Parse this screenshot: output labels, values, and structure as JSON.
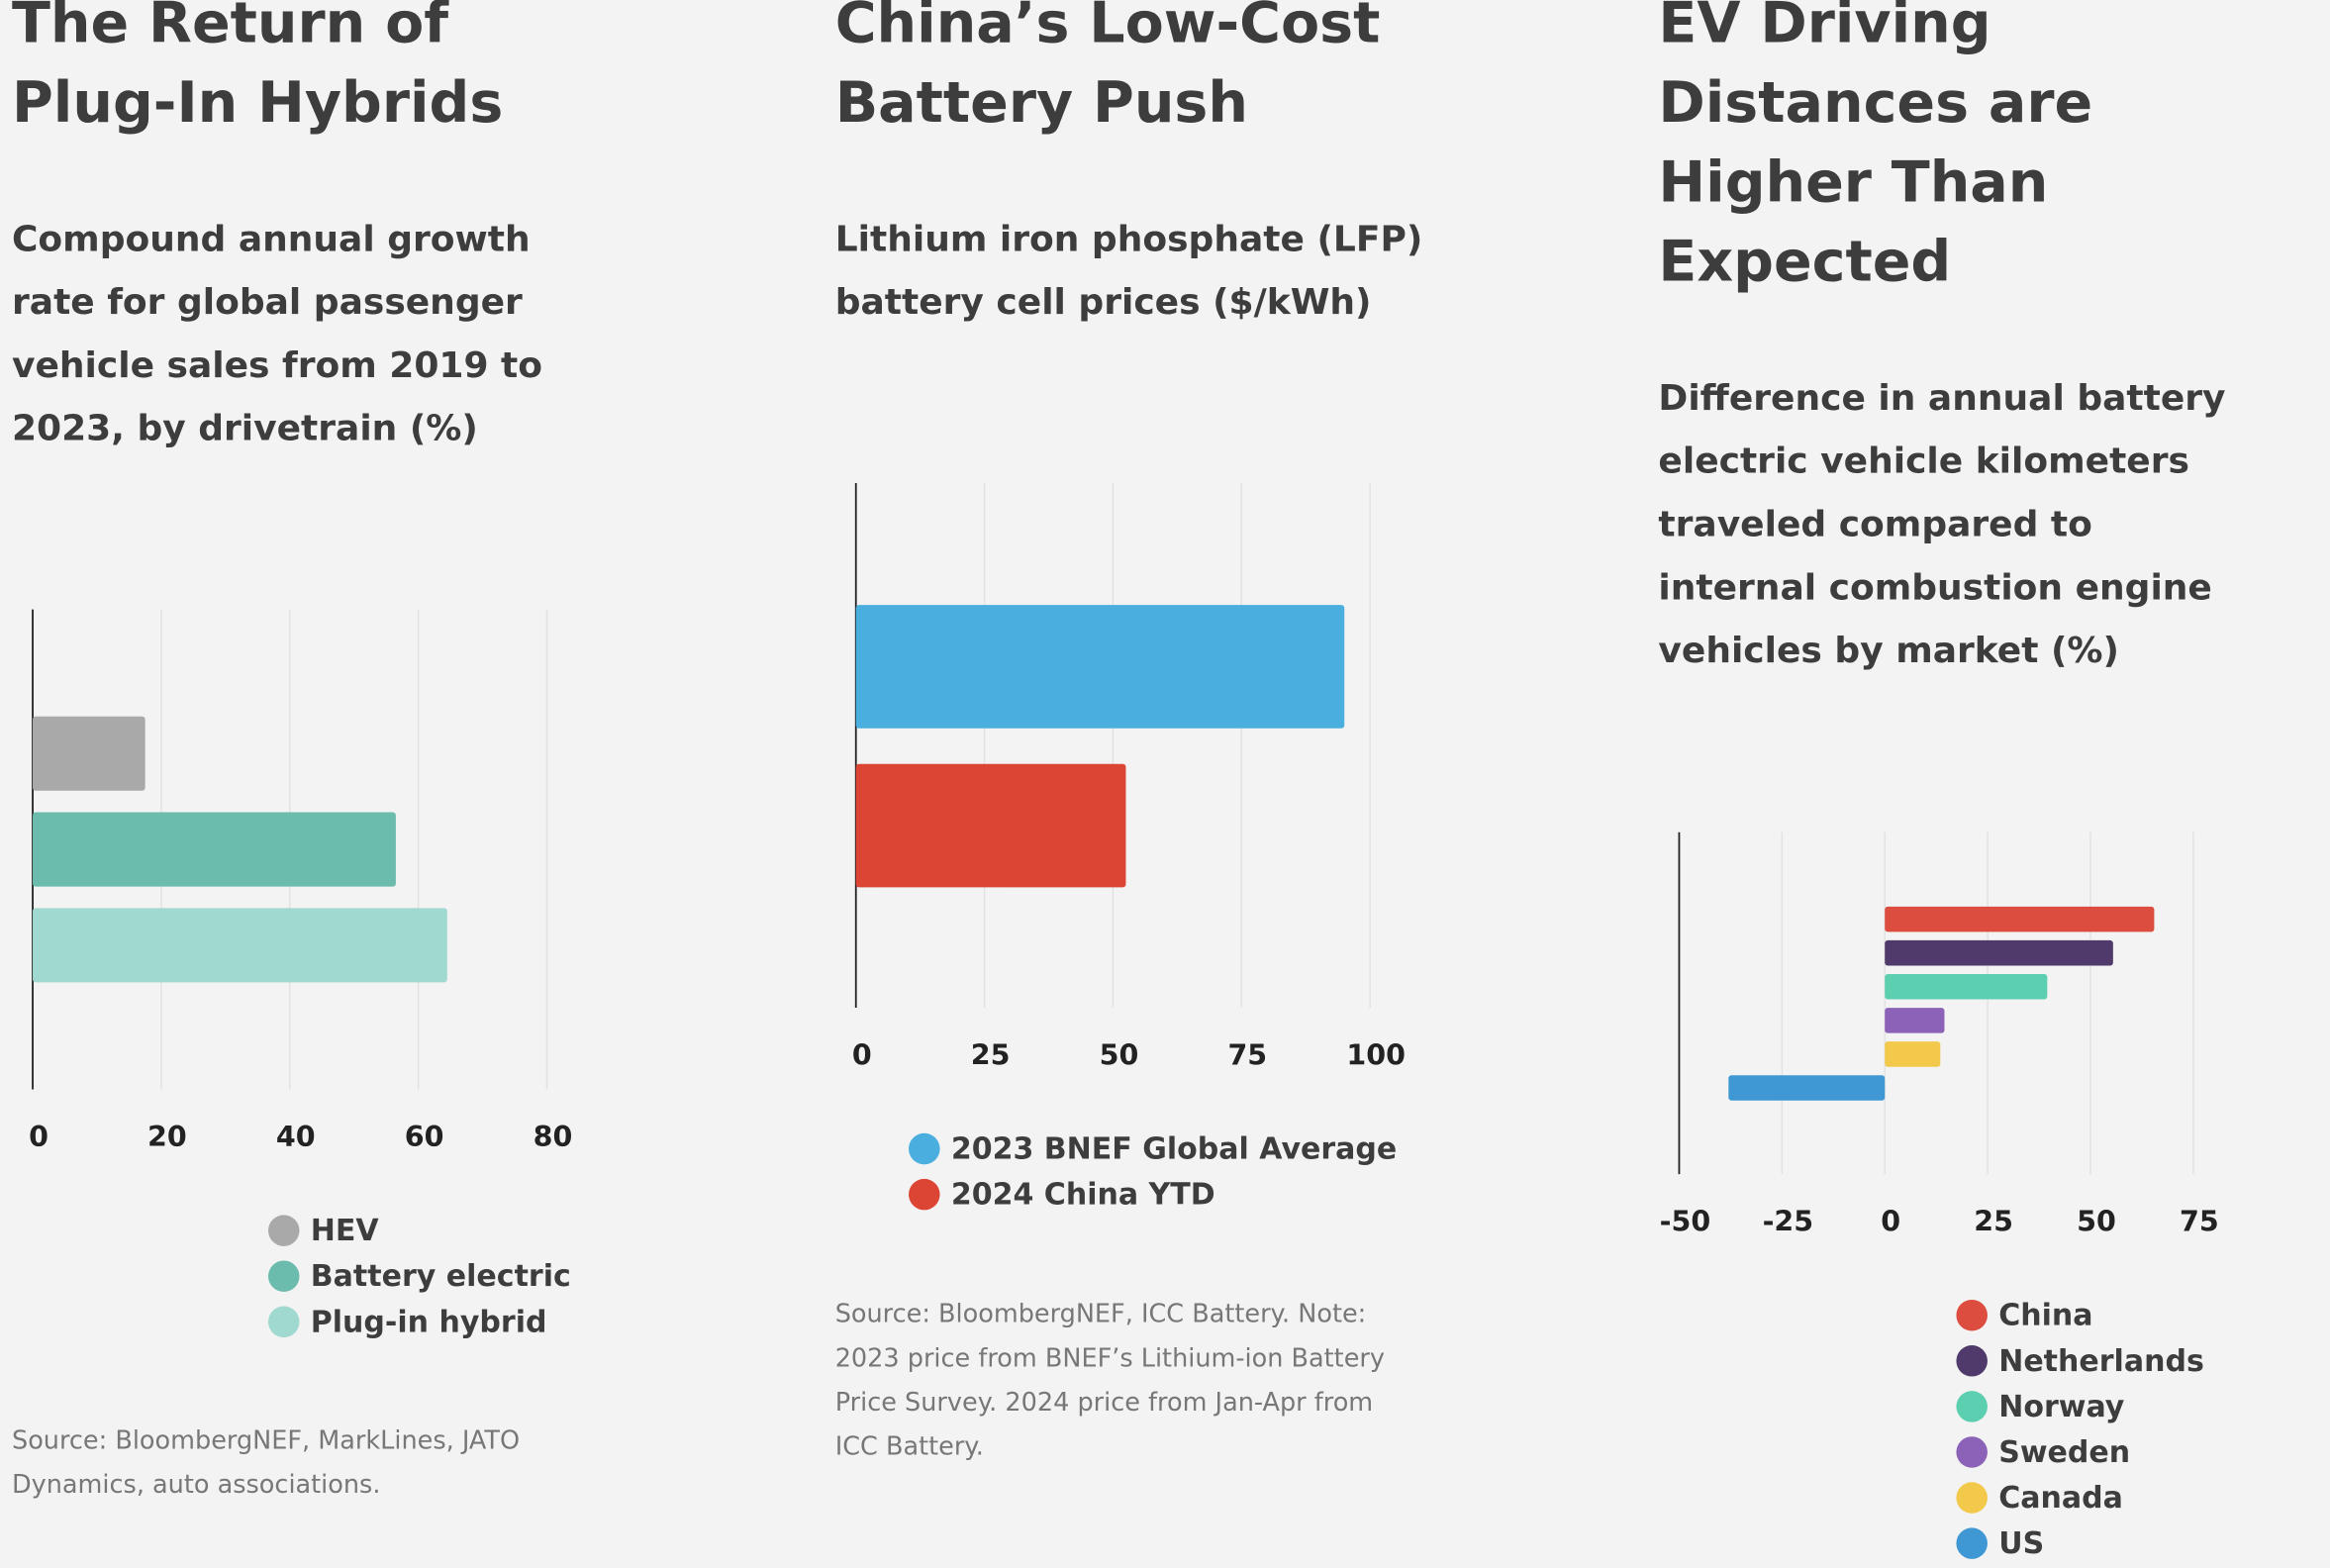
{
  "chart_data": [
    {
      "type": "bar",
      "title": [
        "The Return of",
        "Plug-In Hybrids"
      ],
      "subtitle": [
        "Compound annual growth",
        "rate for global passenger",
        "vehicle sales from 2019 to",
        "2023, by drivetrain (%)"
      ],
      "series": [
        {
          "name": "HEV",
          "color": "#a9a9a9",
          "values": [
            17.5
          ]
        },
        {
          "name": "Battery electric",
          "color": "#6bbcad",
          "values": [
            56.5
          ]
        },
        {
          "name": "Plug-in hybrid",
          "color": "#a0d9cf",
          "values": [
            64.5
          ]
        }
      ],
      "xlim": [
        0,
        80
      ],
      "xticks": [
        0,
        20,
        40,
        60,
        80
      ],
      "grid": true,
      "source": [
        "Source: BloombergNEF, MarkLines, JATO",
        "Dynamics, auto associations."
      ]
    },
    {
      "type": "bar",
      "title": [
        "China’s Low-Cost",
        "Battery Push"
      ],
      "subtitle": [
        "Lithium iron phosphate (LFP)",
        "battery cell prices ($/kWh)"
      ],
      "series": [
        {
          "name": "2023 BNEF Global Average",
          "color": "#4aaedf",
          "values": [
            95
          ]
        },
        {
          "name": "2024 China YTD",
          "color": "#dc4433",
          "values": [
            52.5
          ]
        }
      ],
      "xlim": [
        0,
        100
      ],
      "xticks": [
        0,
        25,
        50,
        75,
        100
      ],
      "grid": true,
      "source": [
        "Source: BloombergNEF, ICC Battery. Note:",
        "2023 price from BNEF’s Lithium-ion Battery",
        "Price Survey. 2024 price from Jan-Apr from",
        "ICC Battery."
      ]
    },
    {
      "type": "bar",
      "title": [
        "EV Driving",
        "Distances are",
        "Higher Than",
        "Expected"
      ],
      "subtitle": [
        "Difference in annual battery",
        "electric vehicle kilometers",
        "traveled compared to",
        "internal combustion engine",
        "vehicles by market (%)"
      ],
      "series": [
        {
          "name": "China",
          "color": "#dc4d3f",
          "values": [
            65.5
          ]
        },
        {
          "name": "Netherlands",
          "color": "#4f3a6b",
          "values": [
            55.5
          ]
        },
        {
          "name": "Norway",
          "color": "#5ccfb0",
          "values": [
            39.5
          ]
        },
        {
          "name": "Sweden",
          "color": "#8b62b8",
          "values": [
            14.5
          ]
        },
        {
          "name": "Canada",
          "color": "#f3c94c",
          "values": [
            13.5
          ]
        },
        {
          "name": "US",
          "color": "#3f97d4",
          "values": [
            -38
          ]
        }
      ],
      "xlim": [
        -50,
        75
      ],
      "xticks": [
        -50,
        -25,
        0,
        25,
        50,
        75
      ],
      "grid": true,
      "source": []
    }
  ]
}
